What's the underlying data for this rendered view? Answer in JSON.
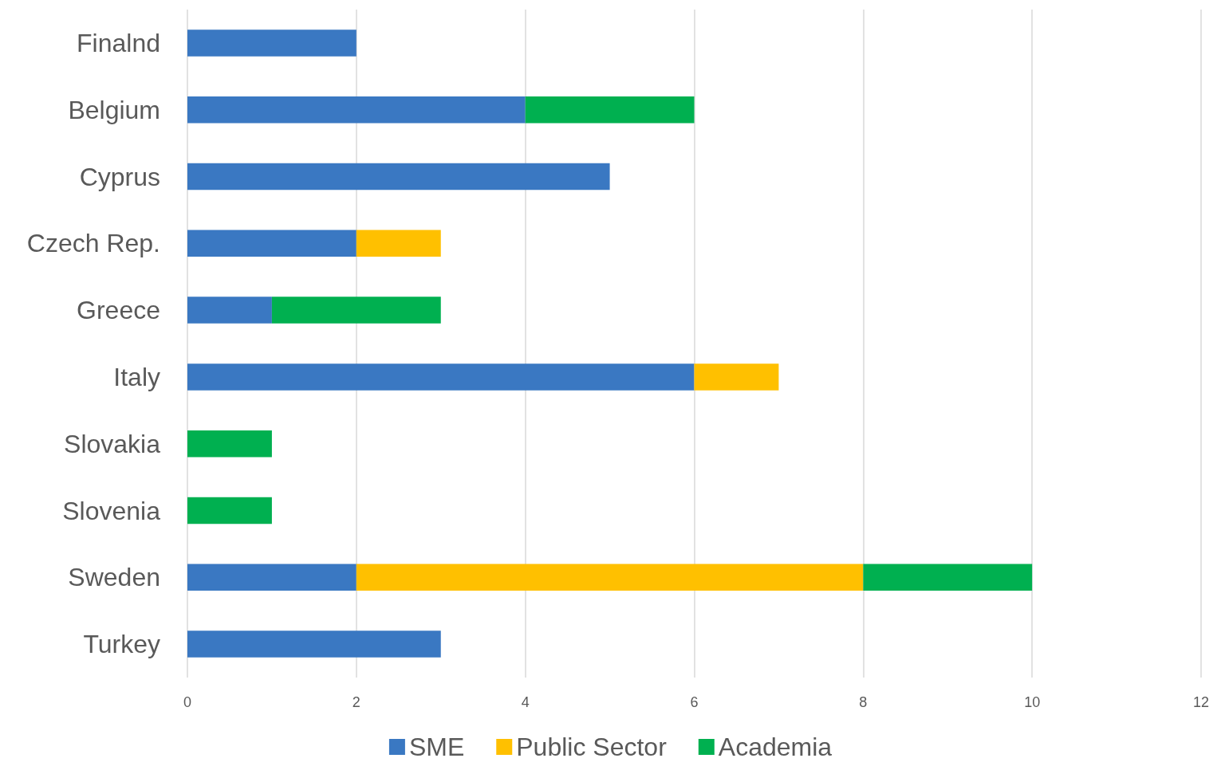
{
  "chart_data": {
    "type": "bar",
    "orientation": "horizontal",
    "stacked": true,
    "categories": [
      "Finalnd",
      "Belgium",
      "Cyprus",
      "Czech Rep.",
      "Greece",
      "Italy",
      "Slovakia",
      "Slovenia",
      "Sweden",
      "Turkey"
    ],
    "series": [
      {
        "name": "SME",
        "color": "#3a78c2",
        "values": [
          2,
          4,
          5,
          2,
          1,
          6,
          0,
          0,
          2,
          3
        ]
      },
      {
        "name": "Public Sector",
        "color": "#ffc000",
        "values": [
          0,
          0,
          0,
          1,
          0,
          1,
          0,
          0,
          6,
          0
        ]
      },
      {
        "name": "Academia",
        "color": "#00b050",
        "values": [
          0,
          2,
          0,
          0,
          2,
          0,
          1,
          1,
          2,
          0
        ]
      }
    ],
    "xlim": [
      0,
      12
    ],
    "xticks": [
      0,
      2,
      4,
      6,
      8,
      10,
      12
    ],
    "grid": "x",
    "legend": "bottom"
  }
}
